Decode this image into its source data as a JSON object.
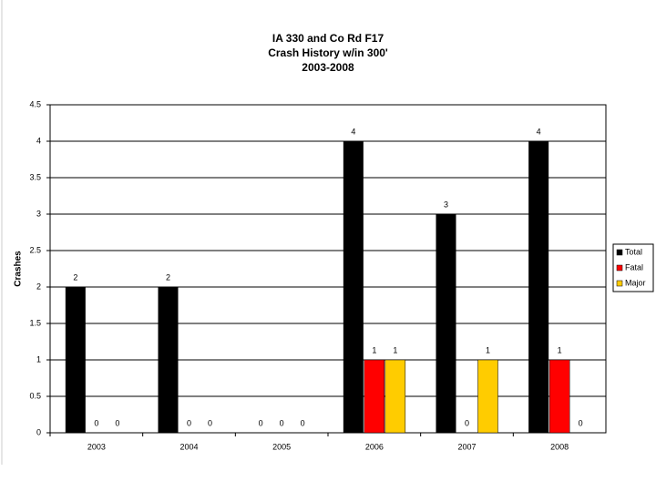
{
  "chart_data": {
    "type": "bar",
    "title": [
      "IA 330 and Co Rd F17",
      "Crash History w/in 300'",
      "2003-2008"
    ],
    "y_label": "Crashes",
    "categories": [
      "2003",
      "2004",
      "2005",
      "2006",
      "2007",
      "2008"
    ],
    "series": [
      {
        "name": "Total",
        "color": "#000000",
        "values": [
          2,
          2,
          0,
          4,
          3,
          4
        ]
      },
      {
        "name": "Fatal",
        "color": "#ff0000",
        "values": [
          0,
          0,
          0,
          1,
          0,
          1
        ]
      },
      {
        "name": "Major",
        "color": "#ffcc00",
        "values": [
          0,
          0,
          0,
          1,
          1,
          0
        ]
      }
    ],
    "ylim": [
      0,
      4.5
    ],
    "yticks": [
      0,
      0.5,
      1,
      1.5,
      2,
      2.5,
      3,
      3.5,
      4,
      4.5
    ],
    "grid": true,
    "legend": "right"
  }
}
